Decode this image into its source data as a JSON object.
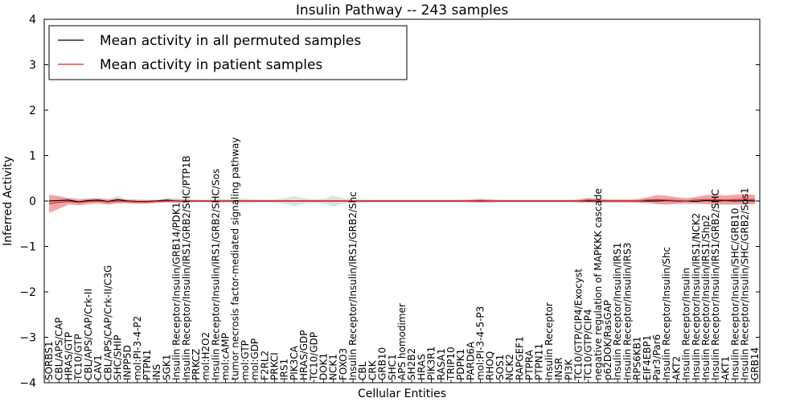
{
  "colors": {
    "background": "#ffffff",
    "axes": "#000000",
    "permuted_line": "#000000",
    "patient_line": "#d62728",
    "patient_band": "#f08080",
    "permuted_band": "#cccccc"
  },
  "chart_data": {
    "type": "line",
    "title": "Insulin Pathway -- 243 samples",
    "xlabel": "Cellular Entities",
    "ylabel": "Inferred Activity",
    "ylim": [
      -4,
      4
    ],
    "yticks": [
      "-4",
      "-3",
      "-2",
      "-1",
      "0",
      "1",
      "2",
      "3",
      "4"
    ],
    "grid": false,
    "legend_position": "top-left",
    "categories": [
      "SORBS1",
      "CBL/APS/CAP",
      "HRAS/GTP",
      "TC10/GTP",
      "CBL/APS/CAP/Crk-II",
      "CAV1",
      "CBL/APS/CAP/Crk-II/C3G",
      "SHC/SHIP",
      "INPP5D",
      "mol:PI-3-4-P2",
      "PTPN1",
      "INS",
      "SGK1",
      "Insulin Receptor/Insulin/GRB14/PDK1",
      "Insulin Receptor/Insulin/IRS1/GRB2/SHC/PTP1B",
      "PRKCZ",
      "mol:H2O2",
      "Insulin Receptor/Insulin/IRS1/GRB2/SHC/Sos",
      "mol:cAMP",
      "tumor necrosis factor-mediated signaling pathway",
      "mol:GTP",
      "mol:GDP",
      "F2RL2",
      "PRKCI",
      "IRS1",
      "PIK3CA",
      "HRAS/GDP",
      "TC10/GDP",
      "DOK1",
      "NCK1",
      "FOXO3",
      "Insulin Receptor/Insulin/IRS1/GRB2/Shc",
      "CBL",
      "CRK",
      "GRB10",
      "SHC1",
      "APS homodimer",
      "SH2B2",
      "HRAS",
      "PIK3R1",
      "RASA1",
      "TRIP10",
      "PDPK1",
      "PARD6A",
      "mol:PI-3-4-5-P3",
      "RHOQ",
      "SOS1",
      "NCK2",
      "RAPGEF1",
      "PTPRA",
      "PTPN11",
      "Insulin Receptor",
      "INSR",
      "PI3K",
      "TC10/GTP/CIP4/Exocyst",
      "TC10/GTP/CIP4",
      "negative regulation of MAPKKK cascade",
      "p62DOK/RasGAP",
      "Insulin Receptor/Insulin/IRS1",
      "Insulin Receptor/Insulin/IRS3",
      "RPS6KB1",
      "EIF4EBP1",
      "Par3/Par6",
      "Insulin Receptor/Insulin/Shc",
      "AKT2",
      "Insulin Receptor/Insulin",
      "Insulin Receptor/Insulin/IRS1/NCK2",
      "Insulin Receptor/Insulin/IRS1/Shp2",
      "Insulin Receptor/Insulin/IRS1/GRB2/SHC",
      "AKT1",
      "Insulin Receptor/Insulin/SHC/GRB10",
      "Insulin Receptor/Insulin/SHC/GRB2/Sos1",
      "GRB14"
    ],
    "series": [
      {
        "name": "Mean activity in all permuted samples",
        "color": "#000000",
        "values": [
          0.0,
          0.01,
          0.02,
          -0.02,
          0.01,
          0.02,
          -0.01,
          0.03,
          0.0,
          -0.01,
          -0.01,
          0.0,
          0.02,
          0.0,
          0.0,
          0.0,
          0.0,
          0.0,
          0.0,
          0.0,
          0.0,
          0.0,
          0.0,
          0.0,
          0.0,
          0.0,
          0.0,
          0.0,
          0.0,
          0.0,
          0.0,
          0.0,
          0.0,
          0.0,
          0.0,
          0.0,
          0.0,
          0.0,
          0.0,
          0.0,
          0.0,
          0.0,
          0.0,
          0.0,
          0.0,
          0.0,
          0.0,
          0.0,
          0.0,
          0.0,
          0.0,
          0.0,
          0.0,
          0.0,
          0.0,
          0.0,
          0.0,
          0.0,
          0.0,
          0.0,
          0.0,
          0.0,
          0.0,
          0.01,
          0.0,
          0.0,
          -0.01,
          0.01,
          0.0,
          0.01,
          0.0,
          0.01,
          0.0
        ],
        "spread": [
          0.05,
          0.06,
          0.06,
          0.08,
          0.05,
          0.06,
          0.05,
          0.08,
          0.04,
          0.05,
          0.04,
          0.03,
          0.05,
          0.06,
          0.05,
          0.03,
          0.03,
          0.06,
          0.04,
          0.05,
          0.05,
          0.04,
          0.03,
          0.04,
          0.06,
          0.11,
          0.06,
          0.04,
          0.05,
          0.12,
          0.06,
          0.04,
          0.03,
          0.03,
          0.03,
          0.03,
          0.03,
          0.03,
          0.03,
          0.03,
          0.03,
          0.03,
          0.03,
          0.03,
          0.03,
          0.04,
          0.03,
          0.03,
          0.03,
          0.03,
          0.03,
          0.03,
          0.03,
          0.03,
          0.03,
          0.04,
          0.04,
          0.03,
          0.03,
          0.03,
          0.04,
          0.05,
          0.05,
          0.06,
          0.07,
          0.08,
          0.07,
          0.06,
          0.06,
          0.06,
          0.07,
          0.07,
          0.06
        ]
      },
      {
        "name": "Mean activity in patient samples",
        "color": "#d62728",
        "values": [
          -0.06,
          -0.03,
          -0.01,
          -0.03,
          -0.01,
          0.0,
          -0.02,
          0.0,
          -0.01,
          -0.02,
          -0.02,
          -0.01,
          0.0,
          0.0,
          0.0,
          0.0,
          0.0,
          0.0,
          0.0,
          0.0,
          0.0,
          0.0,
          0.0,
          0.0,
          0.0,
          0.0,
          0.0,
          0.0,
          0.0,
          0.0,
          0.0,
          0.0,
          0.0,
          0.0,
          0.0,
          0.0,
          0.0,
          0.0,
          0.0,
          0.0,
          0.0,
          0.0,
          0.0,
          0.0,
          0.01,
          0.0,
          0.0,
          0.0,
          0.0,
          0.0,
          0.0,
          0.0,
          0.0,
          0.0,
          0.0,
          0.02,
          0.01,
          0.0,
          0.0,
          0.0,
          0.0,
          0.02,
          0.03,
          0.02,
          0.01,
          0.0,
          0.02,
          0.03,
          0.03,
          0.02,
          0.03,
          0.04,
          0.03
        ],
        "spread": [
          0.2,
          0.14,
          0.07,
          0.06,
          0.06,
          0.05,
          0.06,
          0.05,
          0.04,
          0.04,
          0.04,
          0.03,
          0.03,
          0.03,
          0.03,
          0.02,
          0.02,
          0.02,
          0.02,
          0.02,
          0.02,
          0.02,
          0.02,
          0.02,
          0.02,
          0.02,
          0.02,
          0.02,
          0.02,
          0.02,
          0.02,
          0.02,
          0.02,
          0.02,
          0.02,
          0.02,
          0.02,
          0.02,
          0.02,
          0.02,
          0.02,
          0.02,
          0.02,
          0.03,
          0.04,
          0.03,
          0.02,
          0.02,
          0.02,
          0.02,
          0.02,
          0.02,
          0.02,
          0.02,
          0.03,
          0.05,
          0.04,
          0.03,
          0.03,
          0.03,
          0.04,
          0.06,
          0.1,
          0.1,
          0.07,
          0.05,
          0.07,
          0.1,
          0.11,
          0.1,
          0.11,
          0.12,
          0.1
        ]
      }
    ]
  }
}
